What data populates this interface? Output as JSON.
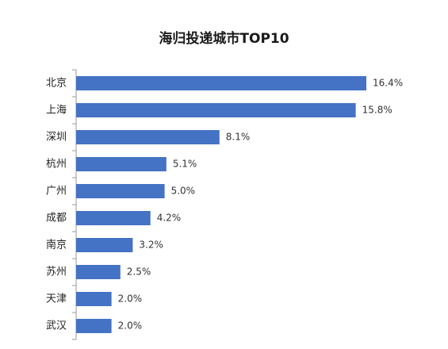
{
  "chart_data": {
    "type": "bar",
    "orientation": "horizontal",
    "title": "海归投递城市TOP10",
    "categories": [
      "北京",
      "上海",
      "深圳",
      "杭州",
      "广州",
      "成都",
      "南京",
      "苏州",
      "天津",
      "武汉"
    ],
    "values": [
      16.4,
      15.8,
      8.1,
      5.1,
      5.0,
      4.2,
      3.2,
      2.5,
      2.0,
      2.0
    ],
    "value_labels": [
      "16.4%",
      "15.8%",
      "8.1%",
      "5.1%",
      "5.0%",
      "4.2%",
      "3.2%",
      "2.5%",
      "2.0%",
      "2.0%"
    ],
    "bar_color": "#4472C4",
    "axis_color": "#999999",
    "grid": false,
    "legend": false
  }
}
